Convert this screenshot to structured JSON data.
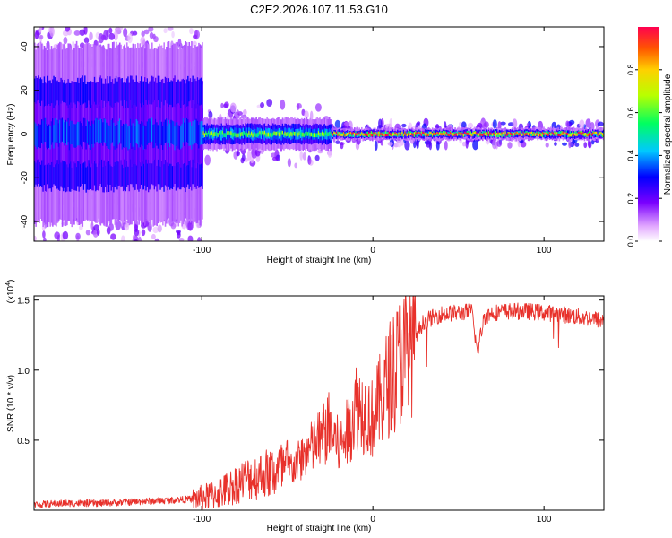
{
  "title": "C2E2.2026.107.11.53.G10",
  "colors": {
    "snr_line": "#e8312b",
    "axis": "#000000",
    "background": "#ffffff"
  },
  "chart_data": [
    {
      "type": "heatmap",
      "xlabel": "Height of straight line (km)",
      "ylabel": "Frequency (Hz)",
      "xlim": [
        -198,
        135
      ],
      "ylim": [
        -49,
        49
      ],
      "xticks": [
        -100,
        0,
        100
      ],
      "xtick_labels": [
        "-100",
        "0",
        "100"
      ],
      "yticks": [
        -40,
        -20,
        0,
        20,
        40
      ],
      "ytick_labels": [
        "-40",
        "-20",
        "0",
        "20",
        "40"
      ],
      "colorbar": {
        "label": "Normalized spectral amplitude",
        "range": [
          0,
          1
        ],
        "ticks": [
          0.0,
          0.2,
          0.4,
          0.6,
          0.8
        ],
        "tick_labels": [
          "0.0",
          "0.2",
          "0.4",
          "0.6",
          "0.8"
        ]
      },
      "description_regions": [
        {
          "x_range": [
            -198,
            -100
          ],
          "freq_spread": 45,
          "peak_amplitude": 0.35
        },
        {
          "x_range": [
            -100,
            -25
          ],
          "freq_spread": 8,
          "peak_amplitude": 0.65
        },
        {
          "x_range": [
            -25,
            135
          ],
          "freq_spread": 3,
          "peak_amplitude": 0.95
        }
      ]
    },
    {
      "type": "line",
      "xlabel": "Height of straight line (km)",
      "ylabel": "SNR (10 * v/v)",
      "y_scale_label": "(x10",
      "y_scale_exp": "4",
      "y_scale_close": ")",
      "xlim": [
        -198,
        135
      ],
      "ylim": [
        0,
        1.53
      ],
      "xticks": [
        -100,
        0,
        100
      ],
      "xtick_labels": [
        "-100",
        "0",
        "100"
      ],
      "yticks": [
        0.5,
        1.0,
        1.5
      ],
      "ytick_labels": [
        "0.5",
        "1.0",
        "1.5"
      ],
      "series": [
        {
          "name": "SNR",
          "x": [
            -198,
            -180,
            -160,
            -140,
            -120,
            -105,
            -95,
            -85,
            -75,
            -65,
            -55,
            -45,
            -40,
            -35,
            -30,
            -25,
            -20,
            -15,
            -10,
            -5,
            0,
            5,
            10,
            15,
            20,
            25,
            30,
            40,
            50,
            58,
            61,
            65,
            70,
            80,
            90,
            100,
            110,
            120,
            128,
            135
          ],
          "values": [
            0.04,
            0.05,
            0.05,
            0.06,
            0.07,
            0.08,
            0.1,
            0.15,
            0.22,
            0.25,
            0.28,
            0.32,
            0.4,
            0.45,
            0.52,
            0.6,
            0.45,
            0.55,
            0.75,
            0.7,
            0.65,
            0.8,
            0.95,
            1.05,
            1.15,
            1.25,
            1.35,
            1.4,
            1.41,
            1.42,
            1.12,
            1.38,
            1.41,
            1.42,
            1.42,
            1.41,
            1.4,
            1.38,
            1.37,
            1.35
          ]
        }
      ]
    }
  ]
}
